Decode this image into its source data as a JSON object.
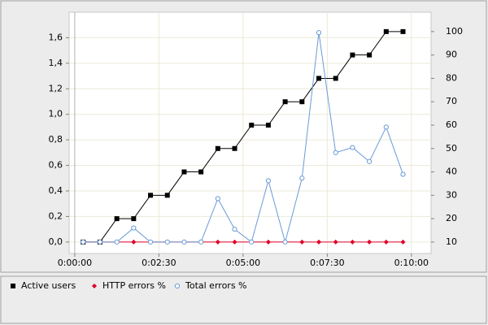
{
  "chart_data": {
    "type": "line",
    "x": [
      15,
      45,
      75,
      105,
      135,
      165,
      195,
      225,
      255,
      285,
      315,
      345,
      375,
      405,
      435,
      465,
      495,
      525,
      555,
      585
    ],
    "xlim": [
      -10,
      635
    ],
    "xticks": [
      {
        "value": 0,
        "label": "0:00:00"
      },
      {
        "value": 150,
        "label": "0:02:30"
      },
      {
        "value": 300,
        "label": "0:05:00"
      },
      {
        "value": 450,
        "label": "0:07:30"
      },
      {
        "value": 600,
        "label": "0:10:00"
      }
    ],
    "ylim": [
      -0.09,
      1.8
    ],
    "yticks": [
      {
        "value": 0,
        "label": "0,0"
      },
      {
        "value": 0.2,
        "label": "0,2"
      },
      {
        "value": 0.4,
        "label": "0,4"
      },
      {
        "value": 0.6,
        "label": "0,6"
      },
      {
        "value": 0.8,
        "label": "0,8"
      },
      {
        "value": 1.0,
        "label": "1,0"
      },
      {
        "value": 1.2,
        "label": "1,2"
      },
      {
        "value": 1.4,
        "label": "1,4"
      },
      {
        "value": 1.6,
        "label": "1,6"
      }
    ],
    "y2lim": [
      5.1,
      108.3
    ],
    "y2ticks": [
      10,
      20,
      30,
      40,
      50,
      60,
      70,
      80,
      90,
      100
    ],
    "grid": true,
    "series": [
      {
        "name": "Active users",
        "color": "#000000",
        "marker": "square",
        "axis": "y2",
        "values": [
          10,
          10,
          20,
          20,
          30,
          30,
          40,
          40,
          50,
          50,
          60,
          60,
          70,
          70,
          80,
          80,
          90,
          90,
          100,
          100
        ]
      },
      {
        "name": "HTTP errors %",
        "color": "#e0002a",
        "marker": "diamond",
        "values": [
          0,
          0,
          0,
          0,
          0,
          0,
          0,
          0,
          0,
          0,
          0,
          0,
          0,
          0,
          0,
          0,
          0,
          0,
          0,
          0
        ]
      },
      {
        "name": "Total errors %",
        "color": "#6a9ad8",
        "marker": "circle",
        "values": [
          0,
          0,
          0,
          0.11,
          0,
          0,
          0,
          0,
          0.34,
          0.1,
          0,
          0.48,
          0,
          0.5,
          1.64,
          0.7,
          0.74,
          0.63,
          0.9,
          0.53
        ]
      }
    ]
  }
}
